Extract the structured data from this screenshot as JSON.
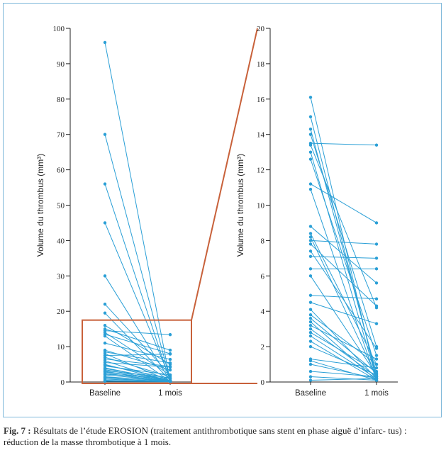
{
  "caption": {
    "lead": "Fig. 7 :",
    "text": " Résultats de l’étude EROSION (traitement antithrombotique sans stent en phase aiguë d’infarc- tus) : réduction de la masse thrombotique à 1 mois."
  },
  "colors": {
    "line": "#2a9fd6",
    "zoom_box": "#c8613a",
    "axis": "#222222",
    "frame": "#7fb8da"
  },
  "chart_data": [
    {
      "type": "line",
      "categories": [
        "Baseline",
        "1 mois"
      ],
      "ylabel": "Volume du thrombus (mm³)",
      "ylim": [
        0,
        100
      ],
      "yticks": [
        0,
        10,
        20,
        30,
        40,
        50,
        60,
        70,
        80,
        90,
        100
      ],
      "grid": false,
      "pairs": [
        [
          96,
          0.3
        ],
        [
          70,
          0.5
        ],
        [
          56,
          0.2
        ],
        [
          45,
          1.0
        ],
        [
          30,
          0.4
        ],
        [
          22,
          2.0
        ],
        [
          19.5,
          0.5
        ],
        [
          16,
          5.0
        ],
        [
          15,
          9.0
        ],
        [
          14.5,
          13.4
        ],
        [
          14,
          2.0
        ],
        [
          13.5,
          8.0
        ],
        [
          13,
          0.2
        ],
        [
          11,
          6.4
        ],
        [
          9,
          3.4
        ],
        [
          8.5,
          5.4
        ],
        [
          8,
          0.3
        ],
        [
          7.5,
          7.9
        ],
        [
          7,
          1.5
        ],
        [
          6.5,
          4.4
        ],
        [
          6,
          0.1
        ],
        [
          5.5,
          4.2
        ],
        [
          5,
          0.2
        ],
        [
          4.8,
          1.0
        ],
        [
          4.5,
          2.0
        ],
        [
          4,
          0.3
        ],
        [
          3.8,
          0.5
        ],
        [
          3.5,
          0.1
        ],
        [
          3.2,
          1.2
        ],
        [
          3,
          0.2
        ],
        [
          2.8,
          0.4
        ],
        [
          2.5,
          0.1
        ],
        [
          2.2,
          1.0
        ],
        [
          2,
          0.3
        ],
        [
          1.5,
          0.2
        ],
        [
          1.3,
          0.5
        ],
        [
          1.1,
          0.1
        ],
        [
          0.8,
          0.2
        ],
        [
          0.5,
          0.1
        ],
        [
          0.3,
          0.3
        ],
        [
          0.2,
          0.1
        ]
      ],
      "zoom_box": [
        0,
        17.5
      ]
    },
    {
      "type": "line",
      "categories": [
        "Baseline",
        "1 mois"
      ],
      "ylabel": "Volume du thrombus (mm³)",
      "ylim": [
        0,
        20
      ],
      "yticks": [
        0,
        2,
        4,
        6,
        8,
        10,
        12,
        14,
        16,
        18,
        20
      ],
      "grid": false,
      "pairs": [
        [
          16.1,
          0.1
        ],
        [
          15,
          0.3
        ],
        [
          14.3,
          0.5
        ],
        [
          14,
          2.0
        ],
        [
          13.5,
          13.4
        ],
        [
          13.4,
          4.2
        ],
        [
          13,
          0.2
        ],
        [
          12.6,
          1.5
        ],
        [
          11.2,
          9.0
        ],
        [
          10.9,
          0.1
        ],
        [
          8.8,
          5.6
        ],
        [
          8.4,
          1.0
        ],
        [
          8.2,
          0.3
        ],
        [
          8.0,
          7.8
        ],
        [
          7.8,
          4.3
        ],
        [
          7.4,
          1.9
        ],
        [
          7.1,
          7.0
        ],
        [
          6.4,
          6.4
        ],
        [
          6.0,
          0.4
        ],
        [
          4.9,
          4.7
        ],
        [
          4.5,
          3.3
        ],
        [
          4.1,
          0.2
        ],
        [
          3.8,
          1.0
        ],
        [
          3.6,
          0.5
        ],
        [
          3.4,
          0.1
        ],
        [
          3.2,
          1.3
        ],
        [
          3.0,
          0.3
        ],
        [
          2.8,
          0.6
        ],
        [
          2.6,
          0.2
        ],
        [
          2.3,
          0.1
        ],
        [
          2.0,
          0.4
        ],
        [
          1.3,
          0.8
        ],
        [
          1.2,
          0.1
        ],
        [
          1.0,
          0.2
        ],
        [
          0.6,
          0.3
        ],
        [
          0.3,
          0.1
        ],
        [
          0.1,
          0.2
        ]
      ]
    }
  ]
}
